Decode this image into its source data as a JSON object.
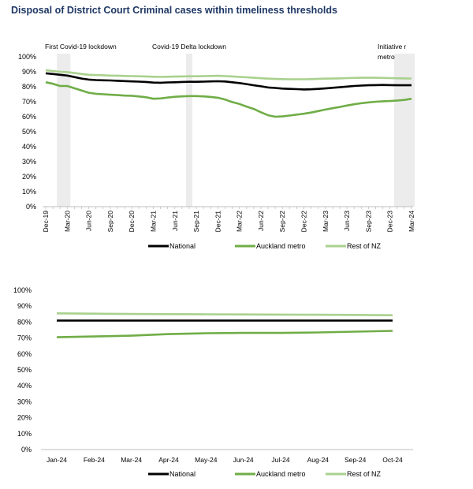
{
  "page": {
    "title": "Disposal of District Court Criminal cases within timeliness thresholds"
  },
  "chart_data": [
    {
      "type": "line",
      "ylim": [
        0,
        100
      ],
      "y_ticks": [
        "0%",
        "10%",
        "20%",
        "30%",
        "40%",
        "50%",
        "60%",
        "70%",
        "80%",
        "90%",
        "100%"
      ],
      "tick_labels": [
        "Dec-19",
        "Mar-20",
        "Jun-20",
        "Sep-20",
        "Dec-20",
        "Mar-21",
        "Jun-21",
        "Sep-21",
        "Dec-21",
        "Mar-22",
        "Jun-22",
        "Sep-22",
        "Dec-22",
        "Mar-23",
        "Jun-23",
        "Sep-23",
        "Dec-23",
        "Mar-24"
      ],
      "x": [
        "Dec-19",
        "Jan-20",
        "Feb-20",
        "Mar-20",
        "Apr-20",
        "May-20",
        "Jun-20",
        "Jul-20",
        "Aug-20",
        "Sep-20",
        "Oct-20",
        "Nov-20",
        "Dec-20",
        "Jan-21",
        "Feb-21",
        "Mar-21",
        "Apr-21",
        "May-21",
        "Jun-21",
        "Jul-21",
        "Aug-21",
        "Sep-21",
        "Oct-21",
        "Nov-21",
        "Dec-21",
        "Jan-22",
        "Feb-22",
        "Mar-22",
        "Apr-22",
        "May-22",
        "Jun-22",
        "Jul-22",
        "Aug-22",
        "Sep-22",
        "Oct-22",
        "Nov-22",
        "Dec-22",
        "Jan-23",
        "Feb-23",
        "Mar-23",
        "Apr-23",
        "May-23",
        "Jun-23",
        "Jul-23",
        "Aug-23",
        "Sep-23",
        "Oct-23",
        "Nov-23",
        "Dec-23",
        "Jan-24",
        "Feb-24",
        "Mar-24"
      ],
      "series": [
        {
          "name": "National",
          "color": "#000000",
          "values": [
            89,
            88.5,
            88,
            87.5,
            86.5,
            85.5,
            84.8,
            84.5,
            84.3,
            84.2,
            84.0,
            83.8,
            83.6,
            83.4,
            83.2,
            82.8,
            82.7,
            82.9,
            83.0,
            83.2,
            83.3,
            83.3,
            83.4,
            83.6,
            83.7,
            83.5,
            83.0,
            82.5,
            81.8,
            81.0,
            80.3,
            79.5,
            79.2,
            78.8,
            78.6,
            78.4,
            78.2,
            78.3,
            78.6,
            78.9,
            79.3,
            79.7,
            80.1,
            80.5,
            80.8,
            81.0,
            81.1,
            81.2,
            81.1,
            81.0,
            81.0,
            81.0
          ]
        },
        {
          "name": "Auckland metro",
          "color": "#70ad47",
          "values": [
            83,
            82,
            80.5,
            80.5,
            79,
            77.5,
            76,
            75.3,
            75,
            74.7,
            74.4,
            74.1,
            74.0,
            73.5,
            73.0,
            72.0,
            72.2,
            72.8,
            73.3,
            73.6,
            73.8,
            73.8,
            73.6,
            73.2,
            72.7,
            71.5,
            69.8,
            68.5,
            66.8,
            65.2,
            63.0,
            61.0,
            60.0,
            60.2,
            60.8,
            61.4,
            62.0,
            62.8,
            63.8,
            64.8,
            65.7,
            66.5,
            67.5,
            68.3,
            69.0,
            69.6,
            70.0,
            70.3,
            70.5,
            70.8,
            71.2,
            72.0
          ]
        },
        {
          "name": "Rest of NZ",
          "color": "#a9d18e",
          "values": [
            91,
            90.5,
            90,
            89.8,
            89.2,
            88.5,
            88,
            87.8,
            87.7,
            87.5,
            87.4,
            87.2,
            87.1,
            87.0,
            86.9,
            86.7,
            86.6,
            86.7,
            86.8,
            86.9,
            87.0,
            87.0,
            87.1,
            87.2,
            87.3,
            87.1,
            86.9,
            86.6,
            86.3,
            86.0,
            85.7,
            85.4,
            85.2,
            85.1,
            85.0,
            85.0,
            85.0,
            85.1,
            85.3,
            85.4,
            85.5,
            85.6,
            85.8,
            85.9,
            86.0,
            86.0,
            86.0,
            85.9,
            85.8,
            85.7,
            85.6,
            85.5
          ]
        }
      ],
      "annotations": [
        {
          "text": "First Covid-19 lockdown",
          "shade_from": "Feb-20",
          "shade_to": "Mar-20",
          "text_at": "Jan-20"
        },
        {
          "text": "Covid-19 Delta lockdown",
          "shade_from": "Aug-21",
          "shade_to": "Aug-21",
          "text_at": "Aug-21"
        },
        {
          "text": "Initiative r",
          "text2": "metro",
          "shade_from": "Jan-24",
          "shade_to": "Mar-24",
          "text_at": "Jan-24"
        }
      ],
      "grid": false,
      "legend": "bottom"
    },
    {
      "type": "line",
      "ylim": [
        0,
        100
      ],
      "y_ticks": [
        "0%",
        "10%",
        "20%",
        "30%",
        "40%",
        "50%",
        "60%",
        "70%",
        "80%",
        "90%",
        "100%"
      ],
      "categories": [
        "Jan-24",
        "Feb-24",
        "Mar-24",
        "Apr-24",
        "May-24",
        "Jun-24",
        "Jul-24",
        "Aug-24",
        "Sep-24",
        "Oct-24"
      ],
      "series": [
        {
          "name": "National",
          "color": "#000000",
          "values": [
            81,
            81,
            81,
            81,
            81,
            81,
            81,
            81,
            81,
            81
          ]
        },
        {
          "name": "Auckland metro",
          "color": "#70ad47",
          "values": [
            70.5,
            71,
            71.5,
            72.5,
            73,
            73.2,
            73.2,
            73.5,
            74,
            74.5
          ]
        },
        {
          "name": "Rest of NZ",
          "color": "#a9d18e",
          "values": [
            85.5,
            85.3,
            85.1,
            85,
            84.9,
            84.8,
            84.7,
            84.6,
            84.5,
            84.3
          ]
        }
      ],
      "grid": false,
      "legend": "bottom"
    }
  ]
}
